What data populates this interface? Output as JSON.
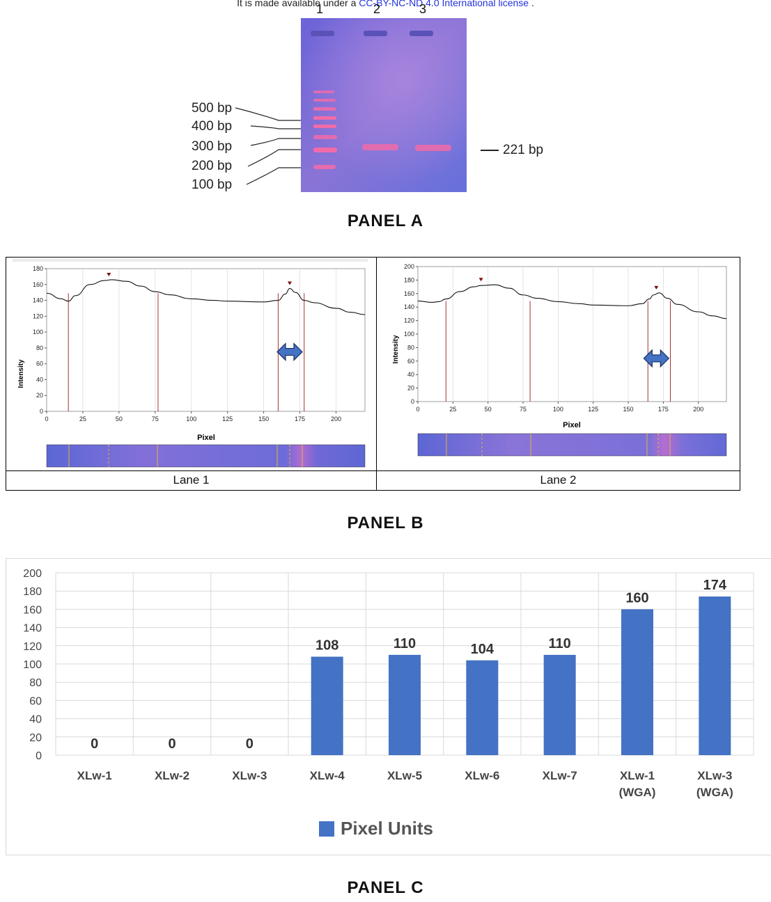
{
  "header": {
    "prefix": "It is made available under a ",
    "license_link": "CC-BY-NC-ND 4.0 International license",
    "suffix": " ."
  },
  "panel_a": {
    "title": "PANEL A",
    "lane_numbers": [
      "1",
      "2",
      "3"
    ],
    "markers": [
      "500 bp",
      "400 bp",
      "300 bp",
      "200 bp",
      "100 bp"
    ],
    "product_label": "221 bp"
  },
  "panel_b": {
    "title": "PANEL B",
    "lanes": [
      {
        "caption": "Lane 1",
        "ylabel": "Intensity",
        "xlabel": "Pixel",
        "yticks": [
          "0",
          "20",
          "40",
          "60",
          "80",
          "100",
          "120",
          "140",
          "160",
          "180"
        ],
        "xticks": [
          "0",
          "25",
          "50",
          "75",
          "100",
          "125",
          "150",
          "175",
          "200"
        ]
      },
      {
        "caption": "Lane 2",
        "ylabel": "Intensity",
        "xlabel": "Pixel",
        "yticks": [
          "0",
          "20",
          "40",
          "60",
          "80",
          "100",
          "120",
          "140",
          "160",
          "180",
          "200"
        ],
        "xticks": [
          "0",
          "25",
          "50",
          "75",
          "100",
          "125",
          "150",
          "175",
          "200"
        ]
      }
    ]
  },
  "panel_c": {
    "title": "PANEL C"
  },
  "chart_data": [
    {
      "type": "line",
      "xlabel": "Pixel",
      "ylabel": "Intensity",
      "xlim": [
        0,
        220
      ],
      "ylim": [
        0,
        180
      ],
      "x": [
        0,
        10,
        15,
        20,
        30,
        40,
        45,
        55,
        65,
        75,
        85,
        100,
        115,
        125,
        150,
        160,
        165,
        168,
        172,
        178,
        185,
        200,
        210,
        220
      ],
      "values": [
        149,
        142,
        139,
        146,
        160,
        165,
        166,
        164,
        158,
        151,
        147,
        142,
        140,
        139,
        138,
        140,
        148,
        155,
        150,
        140,
        137,
        130,
        125,
        122
      ]
    },
    {
      "type": "line",
      "xlabel": "Pixel",
      "ylabel": "Intensity",
      "xlim": [
        0,
        220
      ],
      "ylim": [
        0,
        200
      ],
      "x": [
        0,
        10,
        15,
        20,
        30,
        40,
        45,
        55,
        65,
        75,
        85,
        100,
        115,
        125,
        150,
        160,
        165,
        168,
        172,
        178,
        185,
        200,
        210,
        220
      ],
      "values": [
        149,
        147,
        148,
        152,
        163,
        170,
        172,
        173,
        168,
        158,
        153,
        148,
        145,
        143,
        142,
        145,
        152,
        158,
        161,
        153,
        144,
        133,
        127,
        123
      ]
    },
    {
      "type": "bar",
      "categories": [
        "XLw-1",
        "XLw-2",
        "XLw-3",
        "XLw-4",
        "XLw-5",
        "XLw-6",
        "XLw-7",
        "XLw-1\n(WGA)",
        "XLw-3\n(WGA)"
      ],
      "series": [
        {
          "name": "Pixel Units",
          "values": [
            0,
            0,
            0,
            108,
            110,
            104,
            110,
            160,
            174
          ]
        }
      ],
      "yticks": [
        "0",
        "20",
        "40",
        "60",
        "80",
        "100",
        "120",
        "140",
        "160",
        "180",
        "200"
      ],
      "ylim": [
        0,
        200
      ],
      "legend": "bottom",
      "grid": true,
      "color": "#4472c4"
    }
  ]
}
